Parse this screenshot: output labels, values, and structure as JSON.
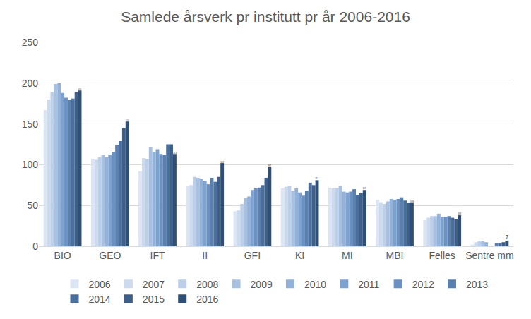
{
  "chart_data": {
    "type": "bar",
    "title": "Samlede årsverk pr institutt pr år 2006-2016",
    "categories": [
      "BIO",
      "GEO",
      "IFT",
      "II",
      "GFI",
      "KI",
      "MI",
      "MBI",
      "Felles",
      "Sentre mm"
    ],
    "series": [
      {
        "name": "2006",
        "color": "#dbe5f3",
        "values": [
          167,
          107,
          92,
          74,
          43,
          71,
          72,
          57,
          32,
          2
        ]
      },
      {
        "name": "2007",
        "color": "#ccdaee",
        "values": [
          180,
          106,
          108,
          75,
          44,
          73,
          71,
          54,
          35,
          5
        ]
      },
      {
        "name": "2008",
        "color": "#bccfe8",
        "values": [
          189,
          109,
          107,
          85,
          52,
          74,
          71,
          52,
          37,
          6
        ]
      },
      {
        "name": "2009",
        "color": "#a9c1e1",
        "values": [
          199,
          112,
          122,
          84,
          59,
          68,
          74,
          55,
          37,
          6
        ]
      },
      {
        "name": "2010",
        "color": "#93b2d9",
        "values": [
          200,
          109,
          115,
          83,
          61,
          71,
          67,
          58,
          40,
          5
        ]
      },
      {
        "name": "2011",
        "color": "#7ea2d0",
        "values": [
          188,
          112,
          119,
          80,
          69,
          66,
          66,
          57,
          36,
          0
        ]
      },
      {
        "name": "2012",
        "color": "#6a91c2",
        "values": [
          182,
          116,
          113,
          76,
          71,
          62,
          67,
          58,
          36,
          0
        ]
      },
      {
        "name": "2013",
        "color": "#5a80b0",
        "values": [
          180,
          124,
          112,
          84,
          72,
          68,
          70,
          60,
          37,
          4
        ]
      },
      {
        "name": "2014",
        "color": "#4b6f9c",
        "values": [
          181,
          129,
          125,
          79,
          75,
          78,
          63,
          56,
          35,
          4
        ]
      },
      {
        "name": "2015",
        "color": "#3d5f88",
        "values": [
          189,
          145,
          125,
          85,
          84,
          75,
          65,
          53,
          33,
          5
        ]
      },
      {
        "name": "2016",
        "color": "#2f4f74",
        "values": [
          191,
          153,
          113,
          102,
          97,
          81,
          69,
          54,
          38,
          7
        ],
        "data_labels": true
      }
    ],
    "ylim": [
      0,
      250
    ],
    "yticks": [
      0,
      50,
      100,
      150,
      200,
      250
    ],
    "grid": true,
    "legend": "bottom"
  }
}
